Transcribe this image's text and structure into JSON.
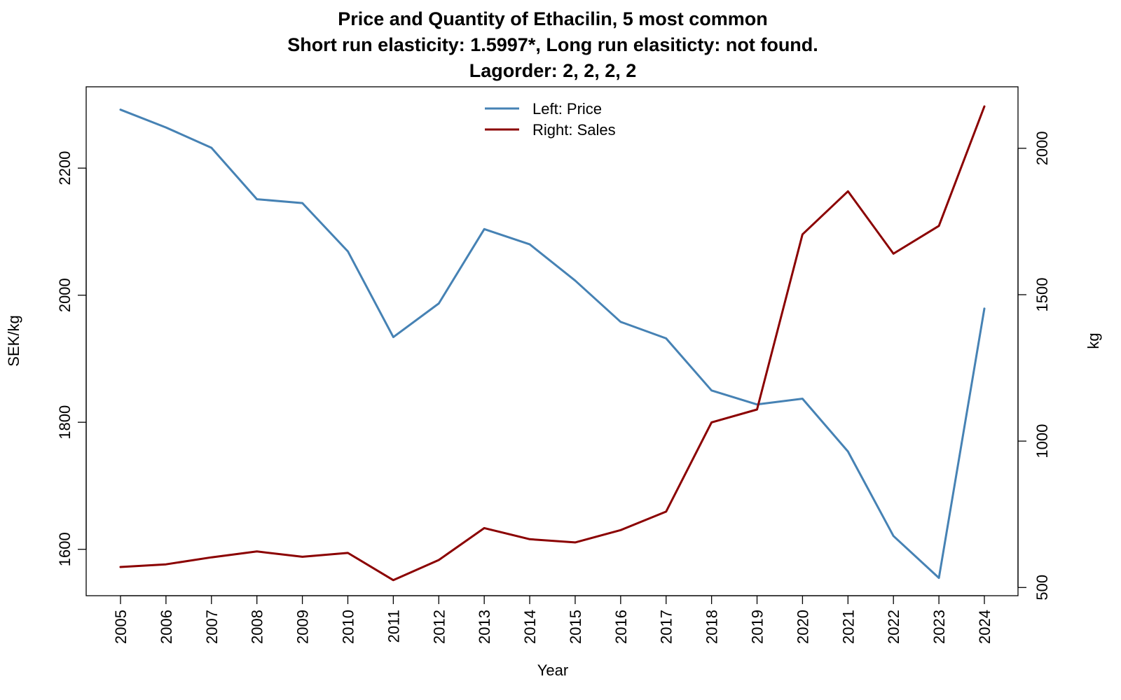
{
  "chart_data": {
    "type": "line",
    "title": [
      "Price and Quantity of Ethacilin, 5 most common",
      "Short run elasticity: 1.5997*,   Long run elasiticty: not found.",
      "Lagorder: 2, 2, 2, 2"
    ],
    "xlabel": "Year",
    "ylabel_left": "SEK/kg",
    "ylabel_right": "kg",
    "x": [
      2005,
      2006,
      2007,
      2008,
      2009,
      2010,
      2011,
      2012,
      2013,
      2014,
      2015,
      2016,
      2017,
      2018,
      2019,
      2020,
      2021,
      2022,
      2023,
      2024
    ],
    "x_tick_labels": [
      "2005",
      "2006",
      "2007",
      "2008",
      "2009",
      "2010",
      "2011",
      "2012",
      "2013",
      "2014",
      "2015",
      "2016",
      "2017",
      "2018",
      "2019",
      "2020",
      "2021",
      "2022",
      "2023",
      "2024"
    ],
    "left_ticks": [
      "1600",
      "1800",
      "2000",
      "2200"
    ],
    "right_ticks": [
      "500",
      "1000",
      "1500",
      "2000"
    ],
    "ylim_left": [
      1527,
      2328
    ],
    "ylim_right": [
      472,
      2210
    ],
    "grid": false,
    "legend_position": "top-center",
    "series": [
      {
        "name": "Left: Price",
        "axis": "left",
        "color": "#4682B4",
        "values": [
          2292,
          2264,
          2232,
          2151,
          2145,
          2069,
          1934,
          1987,
          2104,
          2080,
          2023,
          1958,
          1932,
          1850,
          1828,
          1837,
          1754,
          1621,
          1555,
          1979
        ]
      },
      {
        "name": "Right: Sales",
        "axis": "right",
        "color": "#8B0000",
        "values": [
          570,
          579,
          603,
          623,
          605,
          618,
          525,
          594,
          703,
          665,
          654,
          696,
          759,
          1064,
          1108,
          1706,
          1853,
          1640,
          1735,
          2143
        ]
      }
    ]
  }
}
